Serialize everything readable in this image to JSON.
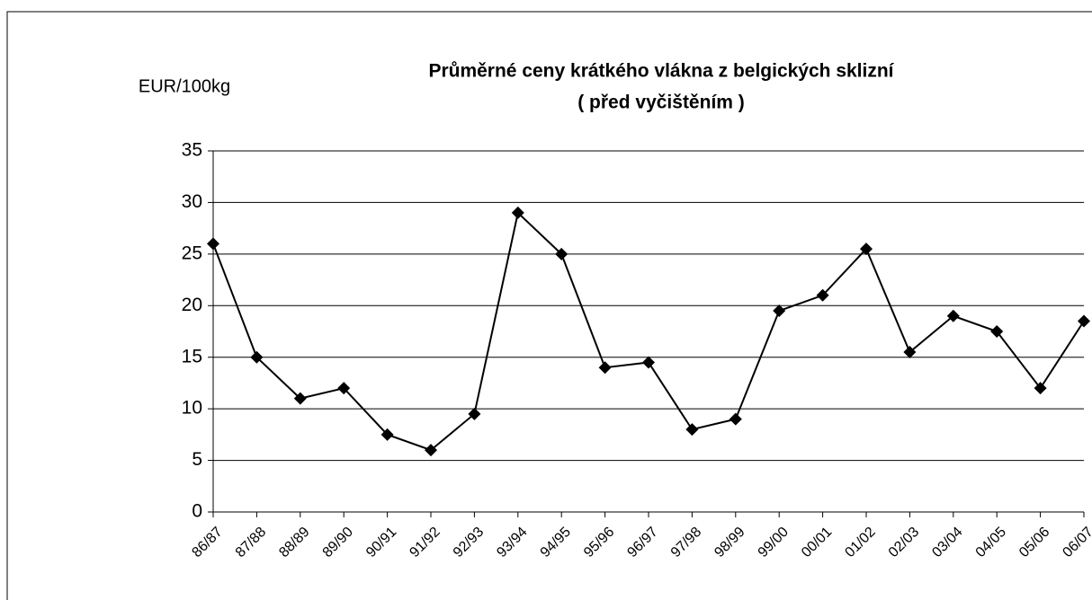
{
  "chart_data": {
    "type": "line",
    "title": "Průměrné ceny krátkého vlákna z belgických sklizní",
    "subtitle": "( před vyčištěním )",
    "y_label": "EUR/100kg",
    "categories": [
      "86/87",
      "87/88",
      "88/89",
      "89/90",
      "90/91",
      "91/92",
      "92/93",
      "93/94",
      "94/95",
      "95/96",
      "96/97",
      "97/98",
      "98/99",
      "99/00",
      "00/01",
      "01/02",
      "02/03",
      "03/04",
      "04/05",
      "05/06",
      "06/07"
    ],
    "series": [
      {
        "color": "#000000",
        "values": [
          26,
          15,
          11,
          12,
          7.5,
          6,
          9.5,
          29,
          25,
          14,
          14.5,
          8,
          9,
          19.5,
          21,
          25.5,
          15.5,
          19,
          17.5,
          12,
          18.5
        ]
      }
    ],
    "ylim": [
      0,
      35
    ],
    "yticks": [
      0,
      5,
      10,
      15,
      20,
      25,
      30,
      35
    ],
    "grid": true
  }
}
